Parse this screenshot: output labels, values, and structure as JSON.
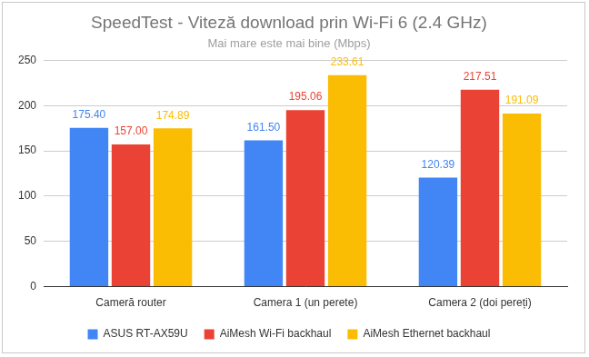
{
  "chart_data": {
    "type": "bar",
    "title": "SpeedTest - Viteză download prin Wi-Fi 6 (2.4 GHz)",
    "subtitle": "Mai mare este mai bine (Mbps)",
    "categories": [
      "Cameră router",
      "Camera 1 (un perete)",
      "Camera 2 (doi pereți)"
    ],
    "series": [
      {
        "name": "ASUS RT-AX59U",
        "color": "#4285f4",
        "values": [
          175.4,
          161.5,
          120.39
        ],
        "value_labels": [
          "175.40",
          "161.50",
          "120.39"
        ]
      },
      {
        "name": "AiMesh Wi-Fi backhaul",
        "color": "#ea4335",
        "values": [
          157.0,
          195.06,
          217.51
        ],
        "value_labels": [
          "157.00",
          "195.06",
          "217.51"
        ]
      },
      {
        "name": "AiMesh Ethernet backhaul",
        "color": "#fbbc04",
        "values": [
          174.89,
          233.61,
          191.09
        ],
        "value_labels": [
          "174.89",
          "233.61",
          "191.09"
        ]
      }
    ],
    "ylim": [
      0,
      250
    ],
    "yticks": [
      0,
      50,
      100,
      150,
      200,
      250
    ],
    "grid": true,
    "legend": "bottom",
    "data_labels": true
  }
}
